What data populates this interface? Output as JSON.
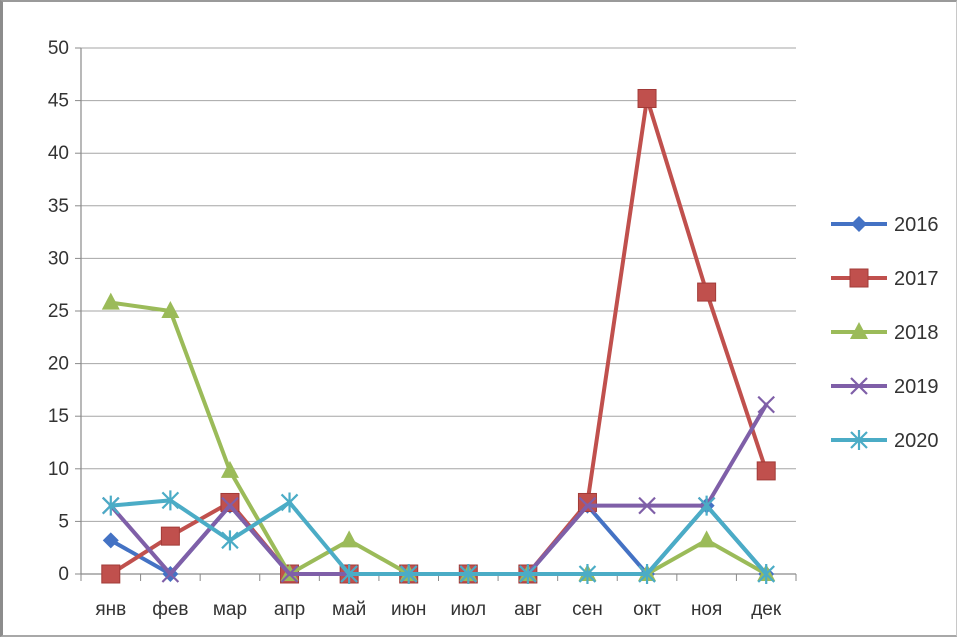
{
  "chart_data": {
    "type": "line",
    "title": "",
    "xlabel": "",
    "ylabel": "",
    "ylim": [
      0,
      50
    ],
    "yticks": [
      0,
      5,
      10,
      15,
      20,
      25,
      30,
      35,
      40,
      45,
      50
    ],
    "grid": "horizontal",
    "legend": "right",
    "categories": [
      "янв",
      "фев",
      "мар",
      "апр",
      "май",
      "июн",
      "июл",
      "авг",
      "сен",
      "окт",
      "ноя",
      "дек"
    ],
    "series": [
      {
        "name": "2016",
        "color": "#4472c4",
        "marker": "diamond",
        "values": [
          3.2,
          0,
          6.5,
          0,
          0,
          0,
          0,
          0,
          6.5,
          0,
          6.5,
          0
        ]
      },
      {
        "name": "2017",
        "color": "#c0504d",
        "marker": "square",
        "values": [
          0,
          3.6,
          6.8,
          0,
          0,
          0,
          0,
          0,
          6.8,
          45.2,
          26.8,
          9.8
        ]
      },
      {
        "name": "2018",
        "color": "#9bbb59",
        "marker": "triangle",
        "values": [
          25.8,
          25,
          9.8,
          0,
          3.2,
          0,
          0,
          0,
          0,
          0,
          3.2,
          0
        ]
      },
      {
        "name": "2019",
        "color": "#7f5fa8",
        "marker": "x",
        "values": [
          6.5,
          0,
          6.5,
          0,
          0,
          0,
          0,
          0,
          6.5,
          6.5,
          6.5,
          16.1
        ]
      },
      {
        "name": "2020",
        "color": "#4bacc6",
        "marker": "star",
        "values": [
          6.5,
          7,
          3.2,
          6.8,
          0,
          0,
          0,
          0,
          0,
          0,
          6.5,
          0
        ]
      }
    ]
  }
}
